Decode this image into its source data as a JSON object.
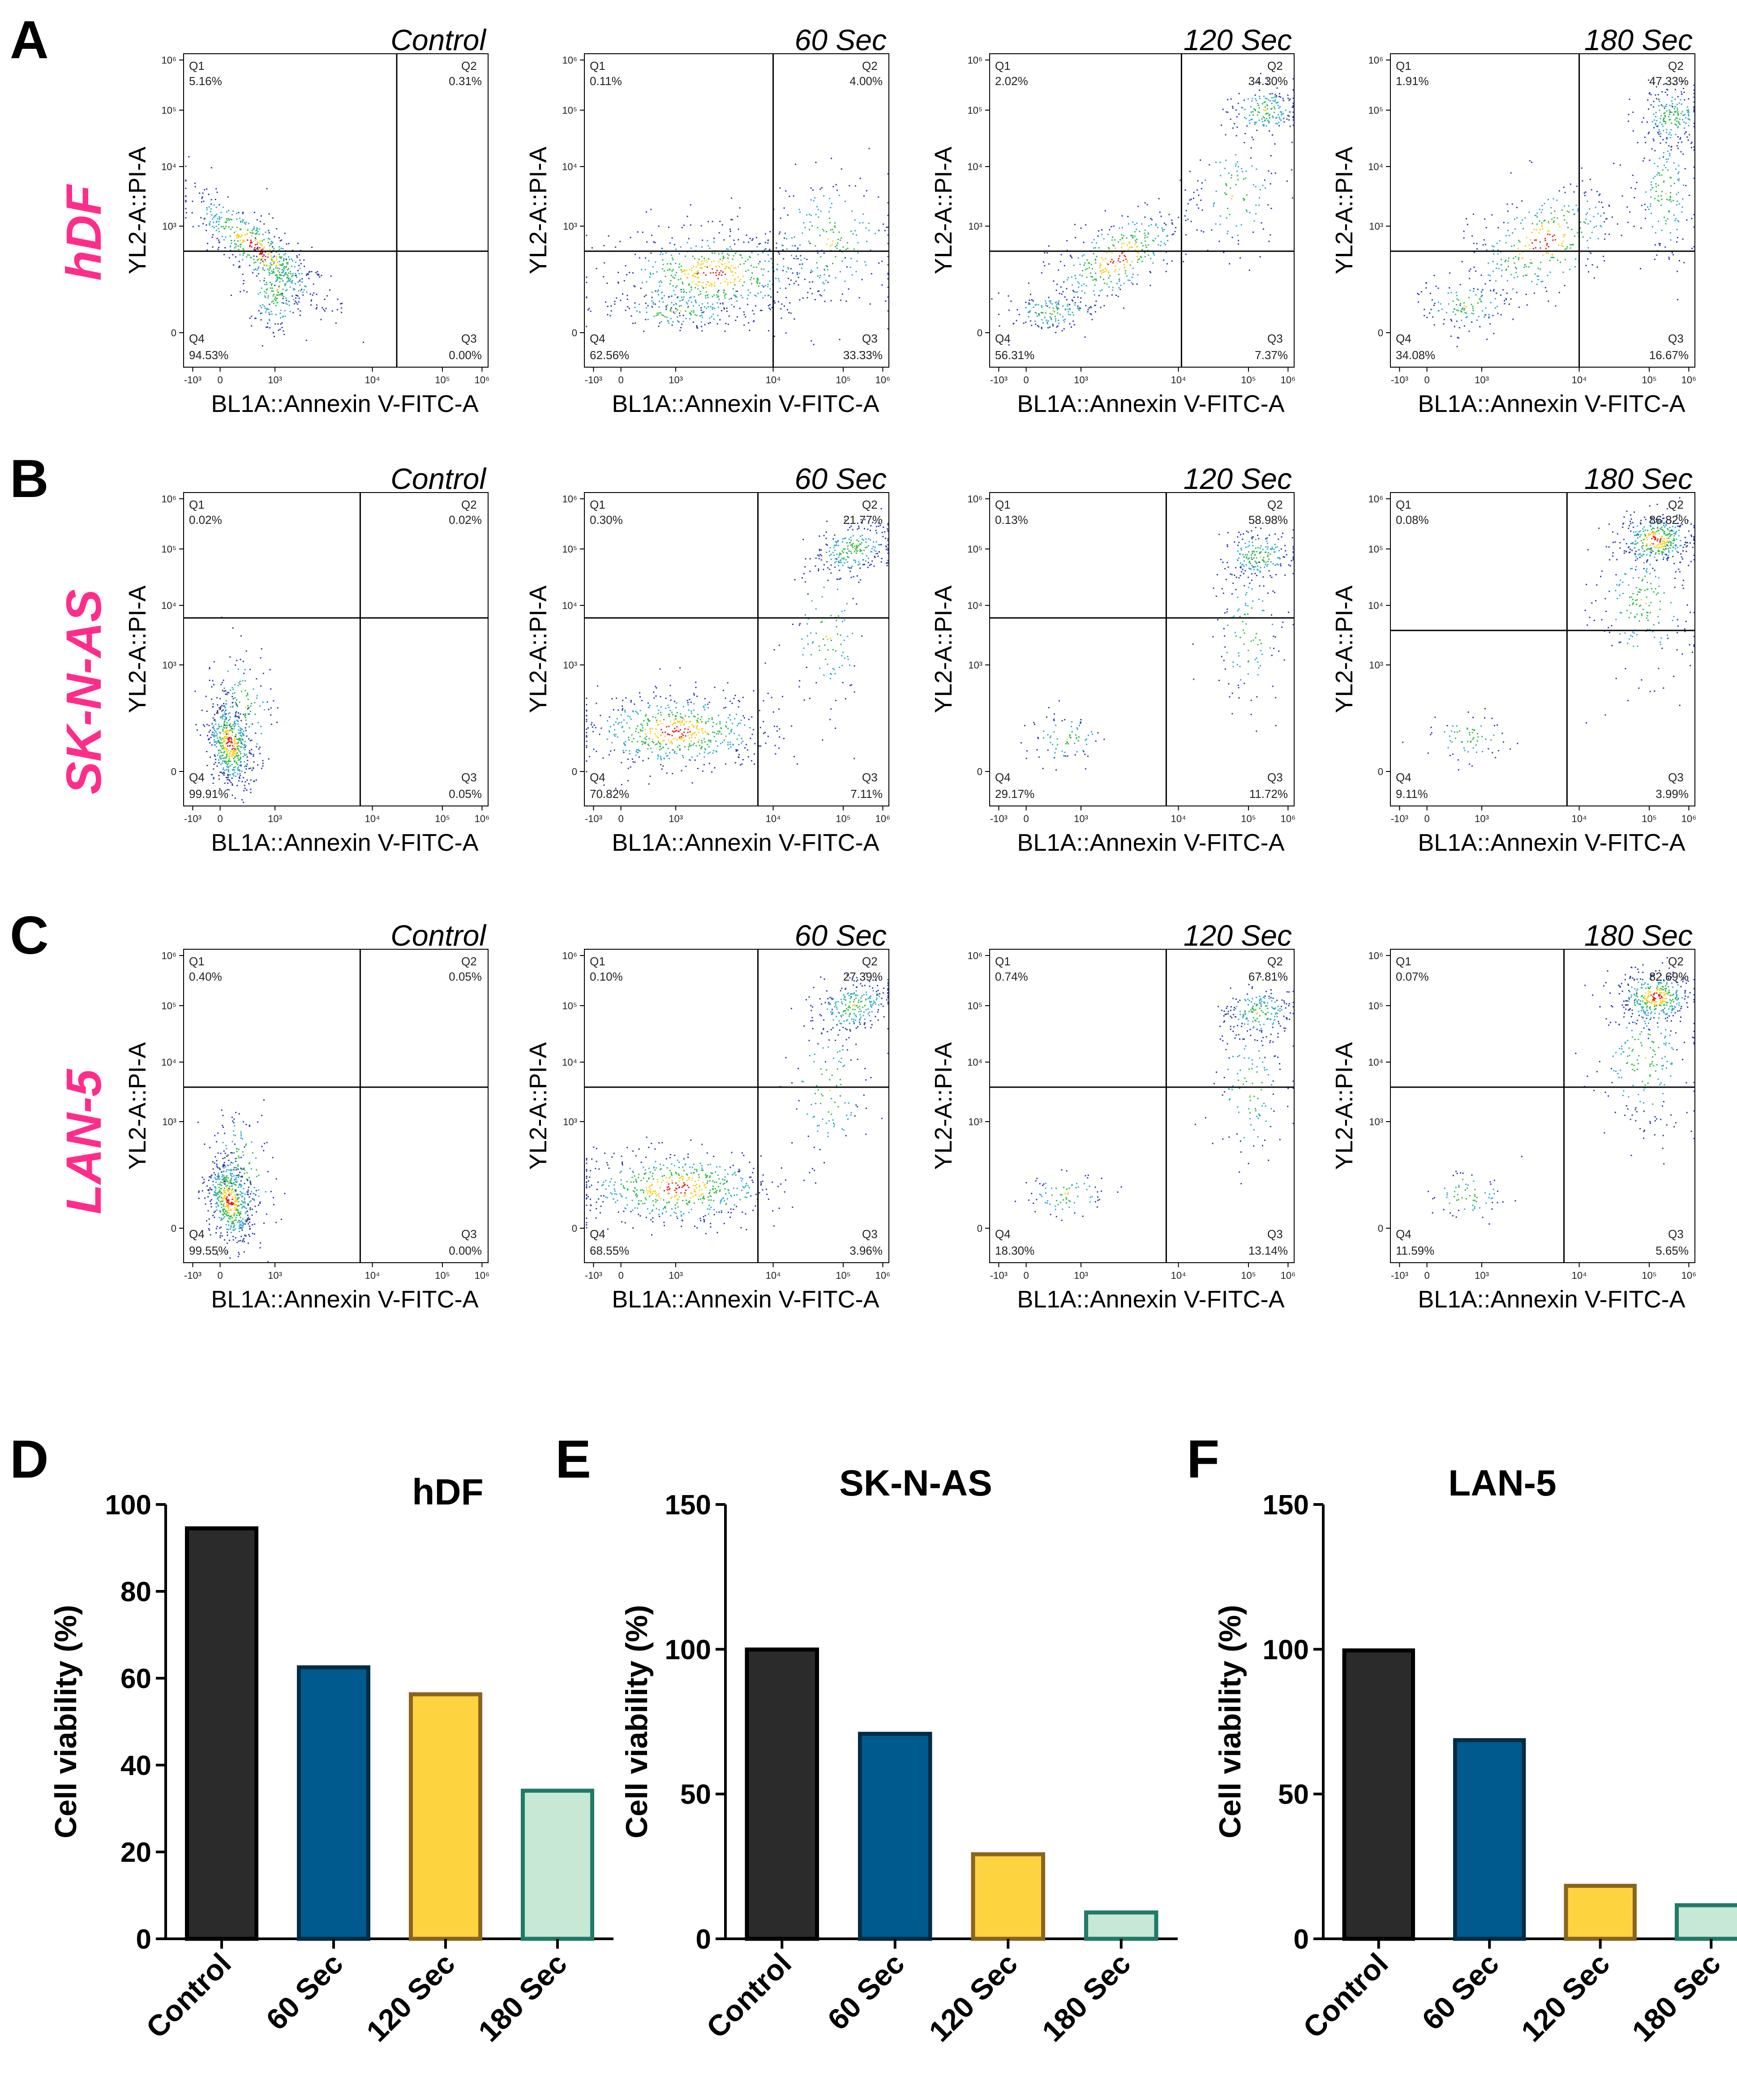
{
  "figure_labels": [
    "A",
    "B",
    "C",
    "D",
    "E",
    "F"
  ],
  "cell_lines": [
    "hDF",
    "SK-N-AS",
    "LAN-5"
  ],
  "flow_axes": {
    "xlabel": "BL1A::Annexin V-FITC-A",
    "ylabel": "YL2-A::PI-A",
    "x_ticks": [
      "-10³",
      "0",
      "10³",
      "10⁴",
      "10⁵",
      "10⁶"
    ],
    "y_ticks": [
      "0",
      "10³",
      "10⁴",
      "10⁵",
      "10⁶"
    ]
  },
  "flow_panels": [
    {
      "row": 0,
      "col": 0,
      "title": "Control",
      "q1": "5.16%",
      "q2": "0.31%",
      "q3": "0.00%",
      "q4": "94.53%",
      "gate_x": 0.7,
      "gate_y": 0.63,
      "population": "healthy"
    },
    {
      "row": 0,
      "col": 1,
      "title": "60 Sec",
      "q1": "0.11%",
      "q2": "4.00%",
      "q3": "33.33%",
      "q4": "62.56%",
      "gate_x": 0.62,
      "gate_y": 0.63,
      "population": "spread_low"
    },
    {
      "row": 0,
      "col": 2,
      "title": "120 Sec",
      "q1": "2.02%",
      "q2": "34.30%",
      "q3": "7.37%",
      "q4": "56.31%",
      "gate_x": 0.63,
      "gate_y": 0.63,
      "population": "diagonal"
    },
    {
      "row": 0,
      "col": 3,
      "title": "180 Sec",
      "q1": "1.91%",
      "q2": "47.33%",
      "q3": "16.67%",
      "q4": "34.08%",
      "gate_x": 0.62,
      "gate_y": 0.63,
      "population": "diagonal_late"
    },
    {
      "row": 1,
      "col": 0,
      "title": "Control",
      "q1": "0.02%",
      "q2": "0.02%",
      "q3": "0.05%",
      "q4": "99.91%",
      "gate_x": 0.58,
      "gate_y": 0.4,
      "population": "healthy_tight"
    },
    {
      "row": 1,
      "col": 1,
      "title": "60 Sec",
      "q1": "0.30%",
      "q2": "21.77%",
      "q3": "7.11%",
      "q4": "70.82%",
      "gate_x": 0.57,
      "gate_y": 0.4,
      "population": "mixed"
    },
    {
      "row": 1,
      "col": 2,
      "title": "120 Sec",
      "q1": "0.13%",
      "q2": "58.98%",
      "q3": "11.72%",
      "q4": "29.17%",
      "gate_x": 0.58,
      "gate_y": 0.4,
      "population": "late"
    },
    {
      "row": 1,
      "col": 3,
      "title": "180 Sec",
      "q1": "0.08%",
      "q2": "86.82%",
      "q3": "3.99%",
      "q4": "9.11%",
      "gate_x": 0.58,
      "gate_y": 0.44,
      "population": "very_late"
    },
    {
      "row": 2,
      "col": 0,
      "title": "Control",
      "q1": "0.40%",
      "q2": "0.05%",
      "q3": "0.00%",
      "q4": "99.55%",
      "gate_x": 0.58,
      "gate_y": 0.44,
      "population": "healthy_tight"
    },
    {
      "row": 2,
      "col": 1,
      "title": "60 Sec",
      "q1": "0.10%",
      "q2": "27.39%",
      "q3": "3.96%",
      "q4": "68.55%",
      "gate_x": 0.57,
      "gate_y": 0.44,
      "population": "mixed"
    },
    {
      "row": 2,
      "col": 2,
      "title": "120 Sec",
      "q1": "0.74%",
      "q2": "67.81%",
      "q3": "13.14%",
      "q4": "18.30%",
      "gate_x": 0.58,
      "gate_y": 0.44,
      "population": "late"
    },
    {
      "row": 2,
      "col": 3,
      "title": "180 Sec",
      "q1": "0.07%",
      "q2": "82.69%",
      "q3": "5.65%",
      "q4": "11.59%",
      "gate_x": 0.57,
      "gate_y": 0.44,
      "population": "very_late"
    }
  ],
  "chart_data": [
    {
      "type": "bar",
      "title": "hDF",
      "ylabel": "Cell viability (%)",
      "categories": [
        "Control",
        "60 Sec",
        "120 Sec",
        "180 Sec"
      ],
      "values": [
        94.5,
        62.5,
        56.3,
        34.1
      ],
      "ylim": [
        0,
        100
      ],
      "yticks": [
        0,
        20,
        40,
        60,
        80,
        100
      ],
      "colors": [
        "#2b2b2b",
        "#005a8d",
        "#fdd33f",
        "#c6e8d5"
      ],
      "edge_colors": [
        "#000000",
        "#002b45",
        "#8a6420",
        "#207a67"
      ]
    },
    {
      "type": "bar",
      "title": "SK-N-AS",
      "ylabel": "Cell viability (%)",
      "categories": [
        "Control",
        "60 Sec",
        "120 Sec",
        "180 Sec"
      ],
      "values": [
        99.9,
        70.8,
        29.2,
        9.1
      ],
      "ylim": [
        0,
        150
      ],
      "yticks": [
        0,
        50,
        100,
        150
      ],
      "colors": [
        "#2b2b2b",
        "#005a8d",
        "#fdd33f",
        "#c6e8d5"
      ],
      "edge_colors": [
        "#000000",
        "#002b45",
        "#8a6420",
        "#207a67"
      ]
    },
    {
      "type": "bar",
      "title": "LAN-5",
      "ylabel": "Cell viability (%)",
      "categories": [
        "Control",
        "60 Sec",
        "120 Sec",
        "180 Sec"
      ],
      "values": [
        99.6,
        68.6,
        18.3,
        11.6
      ],
      "ylim": [
        0,
        150
      ],
      "yticks": [
        0,
        50,
        100,
        150
      ],
      "colors": [
        "#2b2b2b",
        "#005a8d",
        "#fdd33f",
        "#c6e8d5"
      ],
      "edge_colors": [
        "#000000",
        "#002b45",
        "#8a6420",
        "#207a67"
      ]
    }
  ]
}
